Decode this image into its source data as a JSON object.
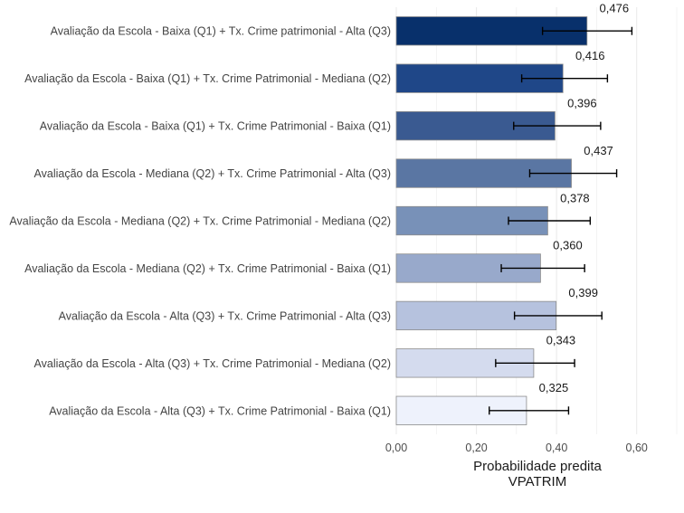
{
  "chart_data": {
    "type": "bar",
    "orientation": "horizontal",
    "categories": [
      "Avaliação da Escola - Baixa (Q1) + Tx. Crime patrimonial - Alta (Q3)",
      "Avaliação da Escola - Baixa (Q1) + Tx. Crime Patrimonial - Mediana (Q2)",
      "Avaliação da Escola - Baixa (Q1) + Tx. Crime Patrimonial - Baixa (Q1)",
      "Avaliação da Escola - Mediana (Q2) + Tx. Crime Patrimonial - Alta (Q3)",
      "Avaliação da Escola - Mediana (Q2) + Tx. Crime Patrimonial - Mediana (Q2)",
      "Avaliação da Escola - Mediana (Q2) + Tx. Crime Patrimonial - Baixa (Q1)",
      "Avaliação da Escola - Alta (Q3) + Tx. Crime Patrimonial - Alta (Q3)",
      "Avaliação da Escola - Alta (Q3) + Tx. Crime Patrimonial -  Mediana (Q2)",
      "Avaliação da Escola - Alta (Q3) + Tx. Crime Patrimonial -  Baixa (Q1)"
    ],
    "values": [
      0.476,
      0.416,
      0.396,
      0.437,
      0.378,
      0.36,
      0.399,
      0.343,
      0.325
    ],
    "value_labels": [
      "0,476",
      "0,416",
      "0,396",
      "0,437",
      "0,378",
      "0,360",
      "0,399",
      "0,343",
      "0,325"
    ],
    "ci_low": [
      0.365,
      0.313,
      0.293,
      0.333,
      0.28,
      0.262,
      0.295,
      0.248,
      0.232
    ],
    "ci_high": [
      0.588,
      0.527,
      0.51,
      0.55,
      0.484,
      0.47,
      0.513,
      0.445,
      0.43
    ],
    "bar_colors": [
      "#08306b",
      "#1f4788",
      "#3a5a91",
      "#5a76a3",
      "#7891b8",
      "#98a9cb",
      "#b6c2de",
      "#d4dbee",
      "#eef2fc"
    ],
    "bar_outline": "#8c8c8c",
    "x_ticks": [
      0,
      0.2,
      0.4,
      0.6
    ],
    "x_tick_labels": [
      "0,00",
      "0,20",
      "0,40",
      "0,60"
    ],
    "xlim": [
      0,
      0.7
    ],
    "xlabel": "Probabilidade predita",
    "xlabel_line2": "VPATRIM",
    "grid": true,
    "grid_color": "#ebebeb"
  }
}
